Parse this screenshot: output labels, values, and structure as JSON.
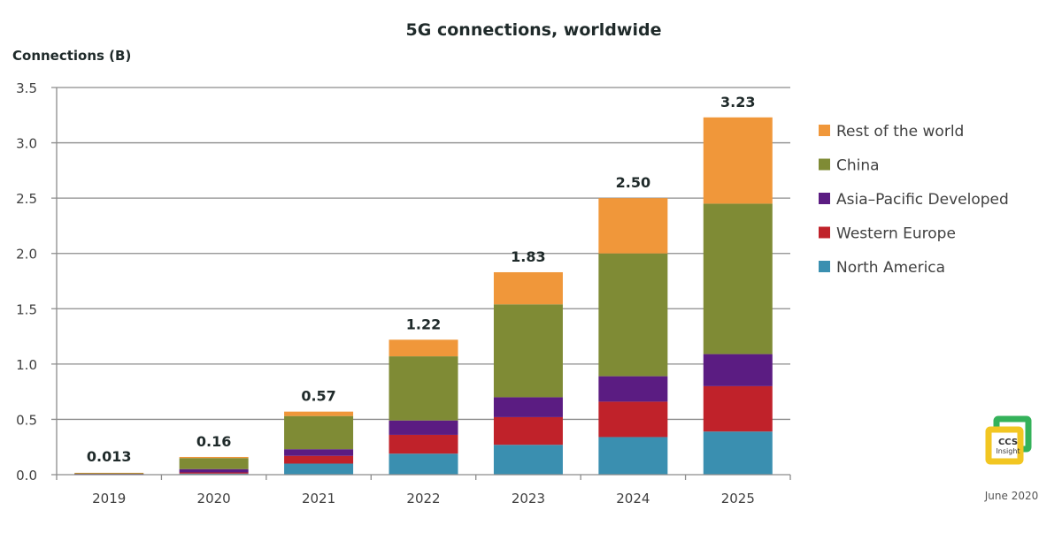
{
  "chart_data": {
    "type": "bar",
    "stacked": true,
    "title": "5G connections, worldwide",
    "xlabel": "",
    "ylabel": "Connections (B)",
    "ylim": [
      0,
      3.5
    ],
    "yticks": [
      "0.0",
      "0.5",
      "1.0",
      "1.5",
      "2.0",
      "2.5",
      "3.0",
      "3.5"
    ],
    "ytick_values": [
      0,
      0.5,
      1.0,
      1.5,
      2.0,
      2.5,
      3.0,
      3.5
    ],
    "grid": true,
    "legend_position": "right",
    "categories": [
      "2019",
      "2020",
      "2021",
      "2022",
      "2023",
      "2024",
      "2025"
    ],
    "totals": [
      "0.013",
      "0.16",
      "0.57",
      "1.22",
      "1.83",
      "2.50",
      "3.23"
    ],
    "series": [
      {
        "name": "North America",
        "color": "#3a8fb0",
        "values": [
          0.002,
          0.01,
          0.1,
          0.19,
          0.27,
          0.34,
          0.39
        ]
      },
      {
        "name": "Western Europe",
        "color": "#c0222a",
        "values": [
          0.002,
          0.01,
          0.07,
          0.17,
          0.25,
          0.32,
          0.41
        ]
      },
      {
        "name": "Asia–Pacific Developed",
        "color": "#5b1c82",
        "values": [
          0.003,
          0.03,
          0.06,
          0.13,
          0.18,
          0.23,
          0.29
        ]
      },
      {
        "name": "China",
        "color": "#7f8b35",
        "values": [
          0.005,
          0.1,
          0.3,
          0.58,
          0.84,
          1.11,
          1.36
        ]
      },
      {
        "name": "Rest of the world",
        "color": "#f0973a",
        "values": [
          0.001,
          0.01,
          0.04,
          0.15,
          0.29,
          0.5,
          0.78
        ]
      }
    ],
    "legend_order": [
      "Rest of the world",
      "China",
      "Asia–Pacific Developed",
      "Western Europe",
      "North America"
    ]
  },
  "branding": {
    "logo_line1": "CCS",
    "logo_line2": "Insight",
    "logo_green": "#34b25a",
    "logo_yellow": "#f2c622",
    "date": "June 2020"
  }
}
